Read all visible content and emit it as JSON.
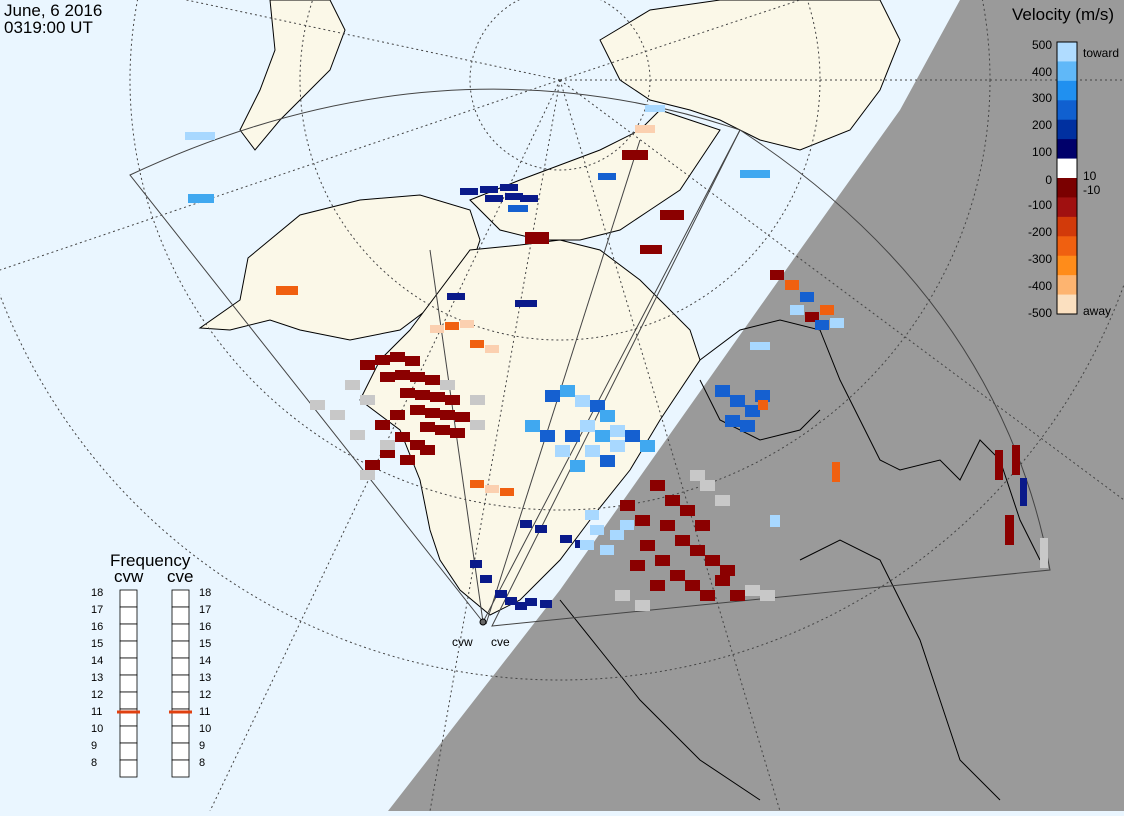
{
  "header": {
    "date": "June, 6 2016",
    "time": "0319:00 UT"
  },
  "legend": {
    "title": "Velocity (m/s)",
    "ticks": [
      "500",
      "400",
      "300",
      "200",
      "100",
      "10",
      "0",
      "-10",
      "-100",
      "-200",
      "-300",
      "-400",
      "-500"
    ],
    "toward_label": "toward",
    "away_label": "away",
    "colors": [
      "#fbe0c0",
      "#fdb470",
      "#ff8c1a",
      "#f06010",
      "#d23a0a",
      "#a01010",
      "#7a0000",
      "#ffffff",
      "#00006a",
      "#0030a0",
      "#1060d0",
      "#2090f0",
      "#60b8f8",
      "#b0dcff"
    ]
  },
  "frequency": {
    "title": "Frequency",
    "radars": [
      {
        "name": "cvw",
        "selected": 11
      },
      {
        "name": "cve",
        "selected": 11
      }
    ],
    "scale": [
      "18",
      "17",
      "16",
      "15",
      "14",
      "13",
      "12",
      "11",
      "10",
      "9",
      "8"
    ]
  },
  "map": {
    "radar_site_labels": [
      "cvw",
      "cve"
    ],
    "ocean_color": "#eaf6ff",
    "land_color": "#fbf8e8",
    "night_color": "#9a9a9a",
    "ground_scatter_color": "#c8c8c8"
  }
}
